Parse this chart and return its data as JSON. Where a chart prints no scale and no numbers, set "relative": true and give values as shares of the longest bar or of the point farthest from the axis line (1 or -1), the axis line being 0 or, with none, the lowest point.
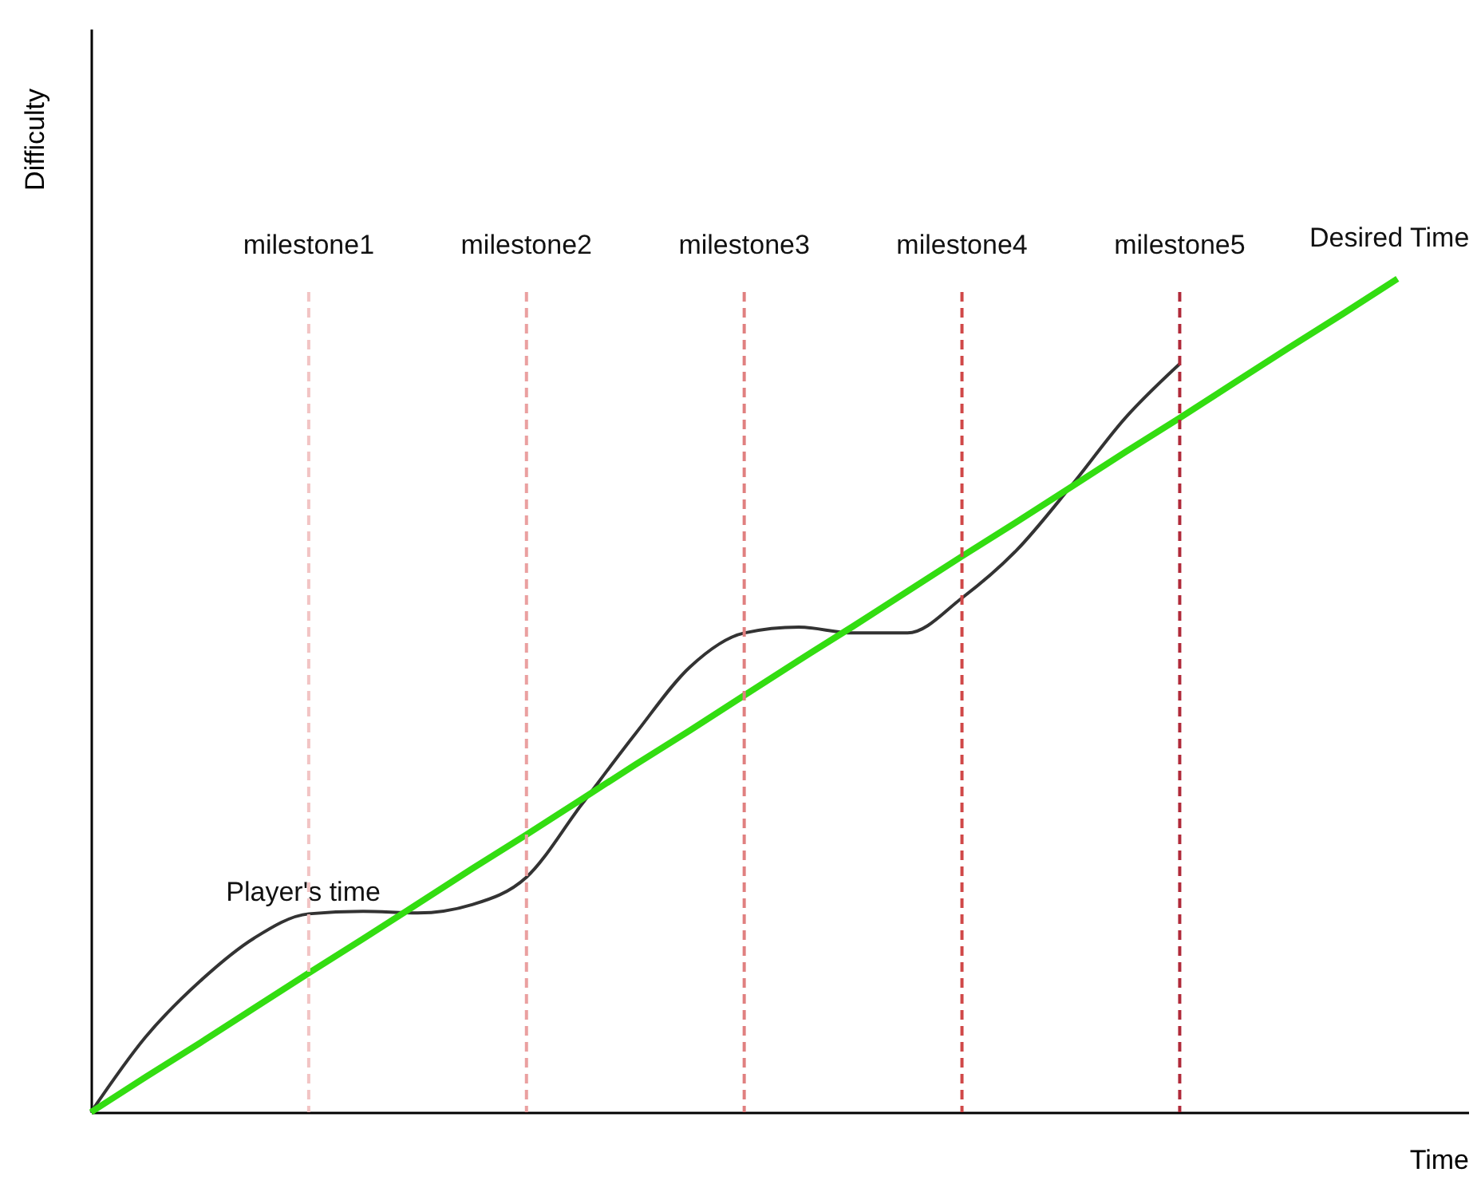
{
  "chart_data": {
    "type": "line",
    "relative": true,
    "xlabel": "Time",
    "ylabel": "Difficulty",
    "categories": [
      null,
      null,
      null,
      null,
      null,
      null,
      null,
      null,
      null,
      null,
      null,
      null,
      null,
      null,
      null,
      null,
      null,
      null,
      null,
      null,
      null,
      null,
      null,
      null,
      null
    ],
    "series": [
      {
        "name": "Player's time",
        "color": "#333333",
        "values": [
          0,
          0.09,
          0.157,
          0.209,
          0.238,
          0.241,
          0.239,
          0.249,
          0.282,
          0.368,
          0.454,
          0.534,
          0.575,
          0.582,
          0.575,
          0.575,
          0.617,
          0.674,
          0.751,
          0.833,
          0.898,
          null,
          null,
          null,
          null
        ]
      },
      {
        "name": "Desired Time",
        "color": "#33dd11",
        "values": [
          0,
          0.042,
          0.083,
          0.125,
          0.167,
          0.208,
          0.25,
          0.292,
          0.333,
          0.375,
          0.417,
          0.458,
          0.5,
          0.542,
          0.583,
          0.625,
          0.667,
          0.708,
          0.75,
          0.792,
          0.833,
          0.875,
          0.917,
          0.958,
          1
        ]
      }
    ],
    "annotations": [
      "milestone1",
      "milestone2",
      "milestone3",
      "milestone4",
      "milestone5"
    ],
    "marker": "none",
    "line_style": "solid"
  }
}
